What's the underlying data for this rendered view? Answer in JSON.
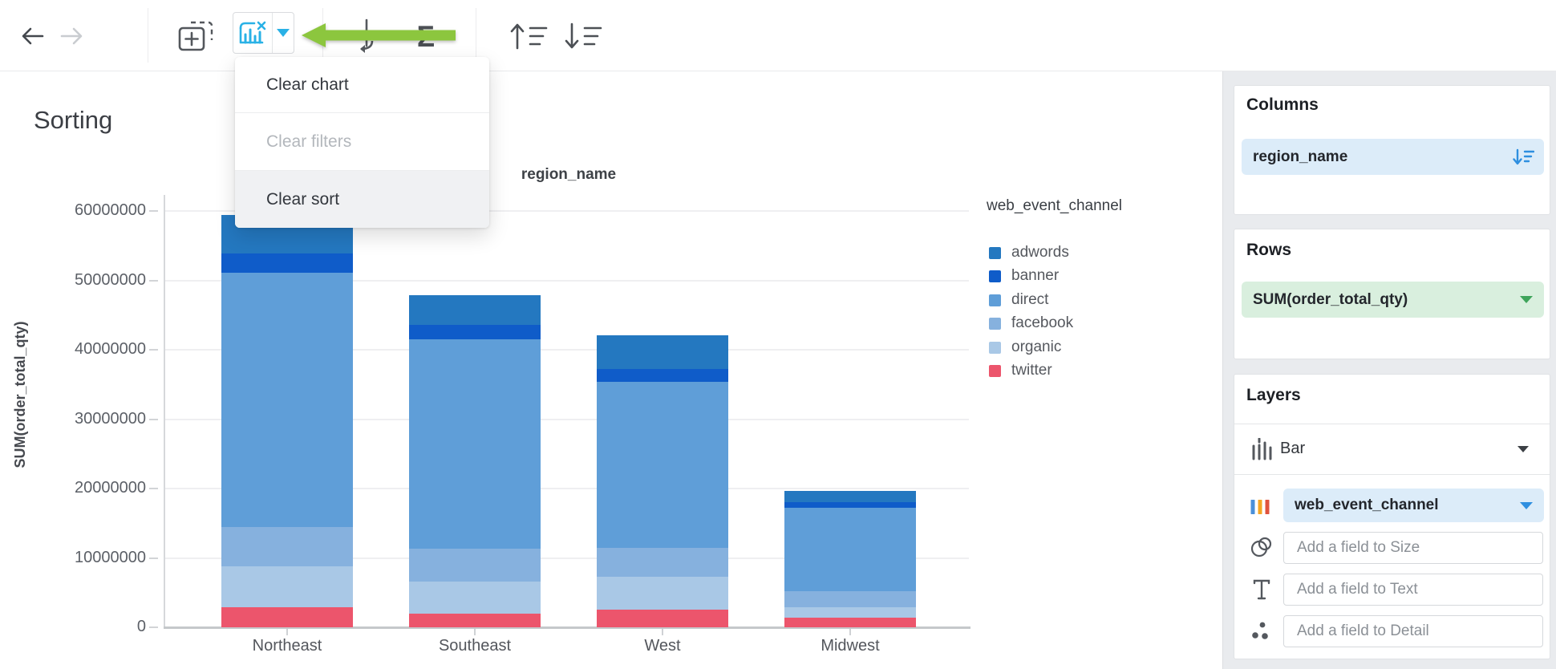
{
  "page": {
    "title": "Sorting"
  },
  "toolbar": {
    "icons": {
      "back": "arrow-left",
      "forward": "arrow-right",
      "add_chart": "add-chart",
      "clear_chart": "clear-chart-x",
      "clear_chart_caret": "caret-down",
      "transpose": "transpose-axes",
      "aggregate": "sigma-sum",
      "sort_asc": "sort-ascending",
      "sort_desc": "sort-descending"
    },
    "accent_blue": "#29b1e6"
  },
  "annotation": {
    "type": "arrow-left",
    "color": "#8cc63e"
  },
  "menu": {
    "items": [
      {
        "label": "Clear chart",
        "enabled": true,
        "active": false
      },
      {
        "label": "Clear filters",
        "enabled": false,
        "active": false
      },
      {
        "label": "Clear sort",
        "enabled": true,
        "active": true
      }
    ]
  },
  "chart_data": {
    "type": "bar",
    "stacked": true,
    "title": "Sorting",
    "x_field": "region_name",
    "y_field": "SUM(order_total_qty)",
    "categories": [
      "Northeast",
      "Southeast",
      "West",
      "Midwest"
    ],
    "series": [
      {
        "name": "adwords",
        "color": "#2478c0",
        "values": [
          5500000,
          4300000,
          4900000,
          1700000
        ]
      },
      {
        "name": "banner",
        "color": "#0f5cc9",
        "values": [
          2800000,
          2100000,
          1800000,
          800000
        ]
      },
      {
        "name": "direct",
        "color": "#5f9ed8",
        "values": [
          36600000,
          30200000,
          23900000,
          12000000
        ]
      },
      {
        "name": "facebook",
        "color": "#86b1de",
        "values": [
          5700000,
          4700000,
          4200000,
          2300000
        ]
      },
      {
        "name": "organic",
        "color": "#a9c8e6",
        "values": [
          5900000,
          4600000,
          4800000,
          1500000
        ]
      },
      {
        "name": "twitter",
        "color": "#ec556c",
        "values": [
          2900000,
          2000000,
          2500000,
          1400000
        ]
      }
    ],
    "y_ticks": [
      0,
      10000000,
      20000000,
      30000000,
      40000000,
      50000000,
      60000000
    ],
    "ylim": [
      0,
      60000000
    ],
    "grid": true,
    "legend_title": "web_event_channel",
    "legend_position": "right"
  },
  "sidebar": {
    "columns": {
      "title": "Columns",
      "field": "region_name",
      "sort_icon": "sort-descending-applied"
    },
    "rows": {
      "title": "Rows",
      "field": "SUM(order_total_qty)"
    },
    "layers": {
      "title": "Layers",
      "type_label": "Bar",
      "type_icon": "bar-chart",
      "color_field": "web_event_channel",
      "color_icon": "color-bars",
      "size_placeholder": "Add a field to Size",
      "text_placeholder": "Add a field to Text",
      "detail_placeholder": "Add a field to Detail"
    },
    "pill_blue": "#dcecf9",
    "pill_green": "#d9efde"
  }
}
